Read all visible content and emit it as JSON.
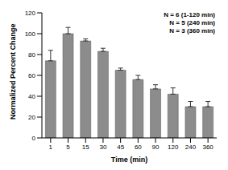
{
  "chart_data": {
    "type": "bar",
    "x_label": "Time (min)",
    "y_label": "Normalized Percent Change",
    "categories": [
      "1",
      "5",
      "15",
      "30",
      "45",
      "60",
      "90",
      "120",
      "240",
      "360"
    ],
    "values": [
      74,
      100,
      93,
      83,
      65,
      56,
      47,
      42,
      30,
      30
    ],
    "error": [
      10,
      6,
      2,
      3,
      2,
      4,
      4,
      6,
      5,
      5
    ],
    "color": "#8c8c8c",
    "ylim": [
      0,
      120
    ],
    "yticks": [
      0,
      20,
      40,
      60,
      80,
      100,
      120
    ],
    "grid": false,
    "annotations": [
      "N = 6 (1-120 min)",
      "N = 5 (240 min)",
      "N = 3 (360 min)"
    ]
  }
}
